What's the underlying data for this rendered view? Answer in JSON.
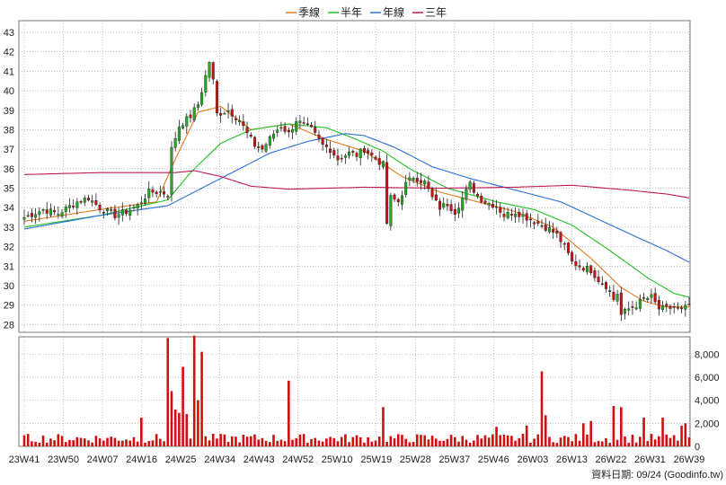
{
  "chart_data": [
    {
      "type": "candlestick",
      "legend": [
        {
          "name": "季線",
          "color": "#e07b20"
        },
        {
          "name": "半年",
          "color": "#22c022"
        },
        {
          "name": "年線",
          "color": "#2a6fd6"
        },
        {
          "name": "三年",
          "color": "#c0185a"
        }
      ],
      "y_ticks": [
        28,
        29,
        30,
        31,
        32,
        33,
        34,
        35,
        36,
        37,
        38,
        39,
        40,
        41,
        42,
        43
      ],
      "ylim": [
        27.6,
        43.6
      ],
      "x_ticks": [
        "23W41",
        "23W50",
        "24W07",
        "24W16",
        "24W25",
        "24W34",
        "24W43",
        "24W52",
        "25W10",
        "25W19",
        "25W28",
        "25W37",
        "25W46",
        "26W03",
        "26W13",
        "26W22",
        "26W31",
        "26W39"
      ],
      "up_color": "#22aa22",
      "down_color": "#cc1111",
      "close_anchors": [
        [
          0,
          33.5
        ],
        [
          5,
          33.9
        ],
        [
          9,
          33.7
        ],
        [
          14,
          34.3
        ],
        [
          17,
          34.5
        ],
        [
          20,
          34.0
        ],
        [
          24,
          33.6
        ],
        [
          27,
          33.8
        ],
        [
          30,
          34.1
        ],
        [
          33,
          34.8
        ],
        [
          36,
          34.8
        ],
        [
          38,
          34.7
        ],
        [
          39,
          37.0
        ],
        [
          41,
          38.2
        ],
        [
          44,
          38.7
        ],
        [
          46,
          39.3
        ],
        [
          47,
          40.0
        ],
        [
          49,
          41.5
        ],
        [
          50,
          40.5
        ],
        [
          51,
          38.8
        ],
        [
          54,
          39.0
        ],
        [
          57,
          38.5
        ],
        [
          59,
          37.8
        ],
        [
          61,
          37.2
        ],
        [
          63,
          37.0
        ],
        [
          66,
          37.8
        ],
        [
          68,
          38.2
        ],
        [
          70,
          37.8
        ],
        [
          72,
          38.5
        ],
        [
          74,
          38.2
        ],
        [
          76,
          38.0
        ],
        [
          79,
          37.2
        ],
        [
          81,
          37.0
        ],
        [
          83,
          36.5
        ],
        [
          86,
          36.8
        ],
        [
          88,
          36.7
        ],
        [
          90,
          37.0
        ],
        [
          93,
          36.5
        ],
        [
          95,
          36.2
        ],
        [
          96,
          33.2
        ],
        [
          97,
          34.5
        ],
        [
          99,
          34.3
        ],
        [
          101,
          35.2
        ],
        [
          103,
          35.6
        ],
        [
          106,
          35.3
        ],
        [
          108,
          34.5
        ],
        [
          110,
          34.0
        ],
        [
          112,
          34.2
        ],
        [
          114,
          33.8
        ],
        [
          116,
          34.5
        ],
        [
          118,
          35.2
        ],
        [
          120,
          34.6
        ],
        [
          122,
          34.3
        ],
        [
          125,
          34.1
        ],
        [
          127,
          33.6
        ],
        [
          130,
          33.8
        ],
        [
          133,
          33.5
        ],
        [
          136,
          33.2
        ],
        [
          139,
          32.9
        ],
        [
          141,
          32.6
        ],
        [
          143,
          32.0
        ],
        [
          145,
          31.2
        ],
        [
          147,
          31.0
        ],
        [
          150,
          30.8
        ],
        [
          152,
          30.3
        ],
        [
          154,
          30.0
        ],
        [
          156,
          29.3
        ],
        [
          157,
          29.6
        ],
        [
          158,
          28.5
        ],
        [
          160,
          28.8
        ],
        [
          162,
          29.0
        ],
        [
          164,
          29.3
        ],
        [
          166,
          29.4
        ],
        [
          168,
          28.8
        ],
        [
          170,
          28.8
        ],
        [
          172,
          28.9
        ],
        [
          174,
          28.7
        ],
        [
          176,
          29.0
        ]
      ],
      "ma_q": [
        [
          0,
          33.3
        ],
        [
          20,
          33.9
        ],
        [
          35,
          34.3
        ],
        [
          40,
          36.5
        ],
        [
          46,
          38.9
        ],
        [
          52,
          39.2
        ],
        [
          60,
          38.0
        ],
        [
          70,
          38.3
        ],
        [
          80,
          37.5
        ],
        [
          90,
          36.9
        ],
        [
          100,
          35.6
        ],
        [
          110,
          34.8
        ],
        [
          120,
          34.3
        ],
        [
          130,
          33.8
        ],
        [
          140,
          33.0
        ],
        [
          150,
          31.4
        ],
        [
          158,
          29.9
        ],
        [
          164,
          29.2
        ],
        [
          170,
          28.9
        ],
        [
          176,
          28.9
        ]
      ],
      "ma_h": [
        [
          0,
          33.0
        ],
        [
          20,
          33.6
        ],
        [
          38,
          34.4
        ],
        [
          44,
          35.8
        ],
        [
          52,
          37.3
        ],
        [
          60,
          38.0
        ],
        [
          70,
          38.3
        ],
        [
          80,
          38.1
        ],
        [
          88,
          37.5
        ],
        [
          95,
          36.9
        ],
        [
          102,
          36.0
        ],
        [
          112,
          35.0
        ],
        [
          125,
          34.3
        ],
        [
          135,
          33.9
        ],
        [
          145,
          33.1
        ],
        [
          155,
          31.8
        ],
        [
          165,
          30.4
        ],
        [
          172,
          29.6
        ],
        [
          176,
          29.4
        ]
      ],
      "ma_y": [
        [
          0,
          32.9
        ],
        [
          20,
          33.6
        ],
        [
          38,
          34.1
        ],
        [
          46,
          34.9
        ],
        [
          55,
          35.8
        ],
        [
          65,
          36.8
        ],
        [
          75,
          37.4
        ],
        [
          85,
          37.8
        ],
        [
          90,
          37.7
        ],
        [
          98,
          37.1
        ],
        [
          108,
          36.1
        ],
        [
          118,
          35.5
        ],
        [
          130,
          34.9
        ],
        [
          142,
          34.3
        ],
        [
          152,
          33.4
        ],
        [
          162,
          32.5
        ],
        [
          170,
          31.8
        ],
        [
          176,
          31.2
        ]
      ],
      "ma_3y": [
        [
          0,
          35.7
        ],
        [
          20,
          35.8
        ],
        [
          40,
          35.8
        ],
        [
          45,
          35.9
        ],
        [
          52,
          35.6
        ],
        [
          60,
          35.1
        ],
        [
          70,
          34.95
        ],
        [
          90,
          35.05
        ],
        [
          110,
          35.0
        ],
        [
          130,
          35.05
        ],
        [
          145,
          35.15
        ],
        [
          160,
          34.9
        ],
        [
          170,
          34.7
        ],
        [
          176,
          34.5
        ]
      ],
      "volume": {
        "y_ticks": [
          0,
          2000,
          4000,
          6000,
          8000
        ],
        "y_tick_labels": [
          "0",
          "2,000",
          "4,000",
          "6,000",
          "8,000"
        ],
        "ylim": [
          0,
          9500
        ],
        "spikes": [
          [
            38,
            9400
          ],
          [
            39,
            4800
          ],
          [
            40,
            3200
          ],
          [
            41,
            2900
          ],
          [
            42,
            6900
          ],
          [
            43,
            2800
          ],
          [
            45,
            9600
          ],
          [
            46,
            4000
          ],
          [
            47,
            8200
          ],
          [
            31,
            2500
          ],
          [
            70,
            5700
          ],
          [
            95,
            3400
          ],
          [
            137,
            6500
          ],
          [
            138,
            2700
          ],
          [
            156,
            3500
          ],
          [
            158,
            3400
          ],
          [
            164,
            2500
          ],
          [
            169,
            2500
          ],
          [
            175,
            2000
          ],
          [
            174,
            1800
          ],
          [
            150,
            2200
          ],
          [
            148,
            2000
          ],
          [
            133,
            1800
          ],
          [
            125,
            1700
          ]
        ]
      },
      "footer": "資料日期: 09/24  (Goodinfo.tw)"
    }
  ]
}
